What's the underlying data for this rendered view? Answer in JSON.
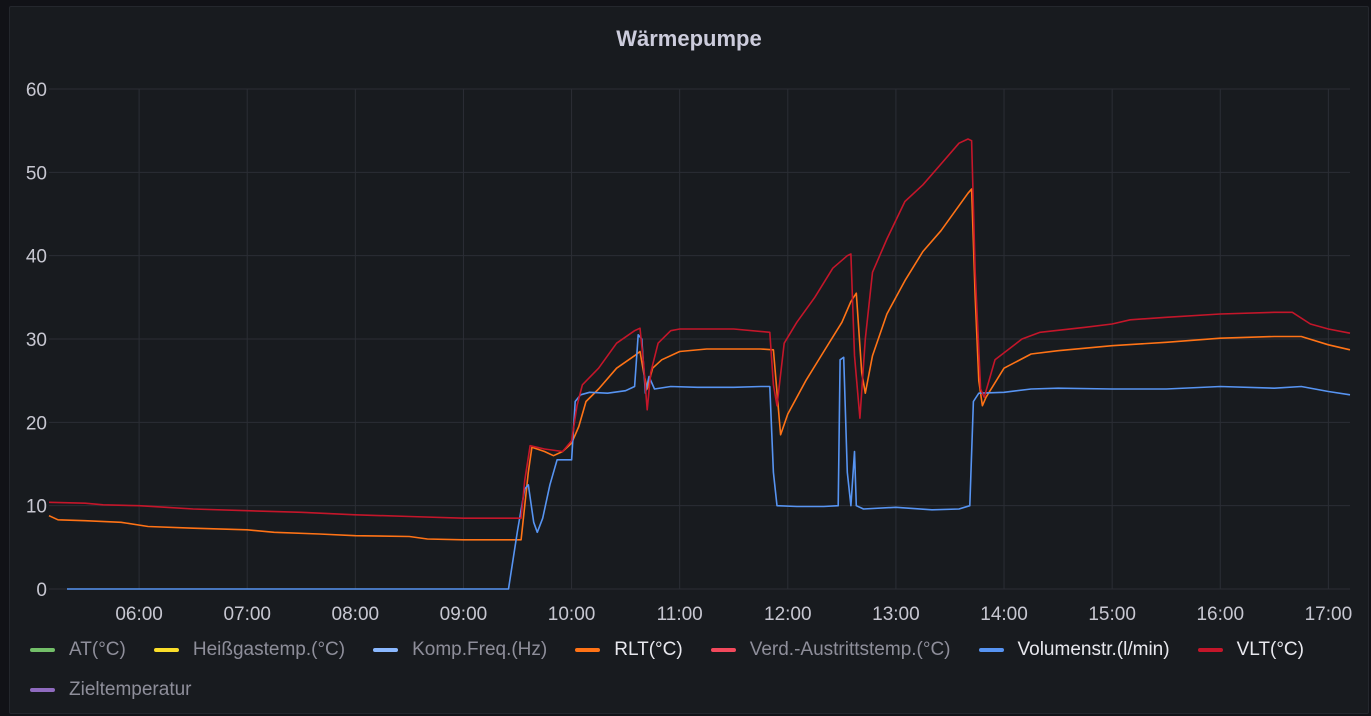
{
  "panel": {
    "title": "Wärmepumpe"
  },
  "legend": [
    {
      "label": "AT(°C)",
      "color": "#73bf69",
      "active": false
    },
    {
      "label": "Heißgastemp.(°C)",
      "color": "#fade2a",
      "active": false
    },
    {
      "label": "Komp.Freq.(Hz)",
      "color": "#8ab8ff",
      "active": false
    },
    {
      "label": "RLT(°C)",
      "color": "#ff7316",
      "active": true
    },
    {
      "label": "Verd.-Austrittstemp.(°C)",
      "color": "#f2495c",
      "active": false
    },
    {
      "label": "Volumenstr.(l/min)",
      "color": "#5794f2",
      "active": true
    },
    {
      "label": "VLT(°C)",
      "color": "#c4162a",
      "active": true
    },
    {
      "label": "Zieltemperatur",
      "color": "#8f6bbf",
      "active": false
    }
  ],
  "chart_data": {
    "type": "line",
    "title": "Wärmepumpe",
    "xlabel": "",
    "ylabel": "",
    "x_axis": {
      "type": "time",
      "range": [
        "05:10",
        "17:12"
      ],
      "ticks": [
        "06:00",
        "07:00",
        "08:00",
        "09:00",
        "10:00",
        "11:00",
        "12:00",
        "13:00",
        "14:00",
        "15:00",
        "16:00",
        "17:00"
      ]
    },
    "y_axis": {
      "range": [
        0,
        60
      ],
      "ticks": [
        0,
        10,
        20,
        30,
        40,
        50,
        60
      ]
    },
    "grid": true,
    "legend_position": "bottom",
    "series": [
      {
        "name": "RLT(°C)",
        "color": "#ff7316",
        "points": [
          [
            "05:10",
            8.8
          ],
          [
            "05:15",
            8.3
          ],
          [
            "05:30",
            8.2
          ],
          [
            "05:50",
            8.0
          ],
          [
            "06:05",
            7.5
          ],
          [
            "06:30",
            7.3
          ],
          [
            "07:00",
            7.1
          ],
          [
            "07:15",
            6.8
          ],
          [
            "07:40",
            6.6
          ],
          [
            "08:00",
            6.4
          ],
          [
            "08:30",
            6.3
          ],
          [
            "08:40",
            6.0
          ],
          [
            "09:00",
            5.9
          ],
          [
            "09:25",
            5.9
          ],
          [
            "09:32",
            5.9
          ],
          [
            "09:36",
            14.0
          ],
          [
            "09:38",
            17.0
          ],
          [
            "09:45",
            16.5
          ],
          [
            "09:50",
            16.0
          ],
          [
            "09:55",
            16.5
          ],
          [
            "10:00",
            17.5
          ],
          [
            "10:04",
            19.5
          ],
          [
            "10:08",
            22.5
          ],
          [
            "10:15",
            24.0
          ],
          [
            "10:25",
            26.5
          ],
          [
            "10:35",
            28.0
          ],
          [
            "10:38",
            28.5
          ],
          [
            "10:40",
            26.0
          ],
          [
            "10:42",
            24.0
          ],
          [
            "10:45",
            26.5
          ],
          [
            "10:50",
            27.5
          ],
          [
            "11:00",
            28.5
          ],
          [
            "11:15",
            28.8
          ],
          [
            "11:30",
            28.8
          ],
          [
            "11:45",
            28.8
          ],
          [
            "11:52",
            28.7
          ],
          [
            "11:56",
            18.5
          ],
          [
            "12:00",
            21.0
          ],
          [
            "12:10",
            25.0
          ],
          [
            "12:20",
            28.5
          ],
          [
            "12:30",
            32.0
          ],
          [
            "12:35",
            34.5
          ],
          [
            "12:38",
            35.5
          ],
          [
            "12:41",
            26.0
          ],
          [
            "12:43",
            23.5
          ],
          [
            "12:47",
            28.0
          ],
          [
            "12:55",
            33.0
          ],
          [
            "13:05",
            37.0
          ],
          [
            "13:15",
            40.5
          ],
          [
            "13:25",
            43.0
          ],
          [
            "13:35",
            46.0
          ],
          [
            "13:40",
            47.5
          ],
          [
            "13:42",
            48.0
          ],
          [
            "13:44",
            35.0
          ],
          [
            "13:46",
            25.0
          ],
          [
            "13:48",
            22.0
          ],
          [
            "13:50",
            23.0
          ],
          [
            "14:00",
            26.5
          ],
          [
            "14:15",
            28.2
          ],
          [
            "14:30",
            28.6
          ],
          [
            "15:00",
            29.2
          ],
          [
            "15:30",
            29.6
          ],
          [
            "16:00",
            30.1
          ],
          [
            "16:30",
            30.3
          ],
          [
            "16:45",
            30.3
          ],
          [
            "17:00",
            29.3
          ],
          [
            "17:12",
            28.7
          ]
        ]
      },
      {
        "name": "Volumenstr.(l/min)",
        "color": "#5794f2",
        "points": [
          [
            "05:20",
            0
          ],
          [
            "09:22",
            0
          ],
          [
            "09:25",
            0
          ],
          [
            "09:30",
            7.0
          ],
          [
            "09:34",
            12.0
          ],
          [
            "09:36",
            12.5
          ],
          [
            "09:39",
            8.0
          ],
          [
            "09:41",
            6.8
          ],
          [
            "09:44",
            8.5
          ],
          [
            "09:48",
            12.5
          ],
          [
            "09:52",
            15.5
          ],
          [
            "09:56",
            15.5
          ],
          [
            "10:00",
            15.5
          ],
          [
            "10:02",
            22.5
          ],
          [
            "10:05",
            23.3
          ],
          [
            "10:10",
            23.6
          ],
          [
            "10:20",
            23.5
          ],
          [
            "10:30",
            23.8
          ],
          [
            "10:35",
            24.3
          ],
          [
            "10:37",
            30.5
          ],
          [
            "10:39",
            30.0
          ],
          [
            "10:41",
            23.5
          ],
          [
            "10:43",
            25.5
          ],
          [
            "10:46",
            24.0
          ],
          [
            "10:55",
            24.3
          ],
          [
            "11:10",
            24.2
          ],
          [
            "11:30",
            24.2
          ],
          [
            "11:45",
            24.3
          ],
          [
            "11:50",
            24.3
          ],
          [
            "11:52",
            14.0
          ],
          [
            "11:54",
            10.0
          ],
          [
            "12:05",
            9.9
          ],
          [
            "12:20",
            9.9
          ],
          [
            "12:28",
            10.0
          ],
          [
            "12:29",
            27.5
          ],
          [
            "12:31",
            27.8
          ],
          [
            "12:33",
            14.0
          ],
          [
            "12:35",
            10.0
          ],
          [
            "12:37",
            16.5
          ],
          [
            "12:38",
            10.0
          ],
          [
            "12:42",
            9.6
          ],
          [
            "13:00",
            9.8
          ],
          [
            "13:20",
            9.5
          ],
          [
            "13:35",
            9.6
          ],
          [
            "13:41",
            10.0
          ],
          [
            "13:43",
            22.5
          ],
          [
            "13:46",
            23.5
          ],
          [
            "14:00",
            23.6
          ],
          [
            "14:15",
            24.0
          ],
          [
            "14:30",
            24.1
          ],
          [
            "15:00",
            24.0
          ],
          [
            "15:30",
            24.0
          ],
          [
            "16:00",
            24.3
          ],
          [
            "16:30",
            24.1
          ],
          [
            "16:45",
            24.3
          ],
          [
            "17:00",
            23.7
          ],
          [
            "17:12",
            23.3
          ]
        ]
      },
      {
        "name": "VLT(°C)",
        "color": "#c4162a",
        "points": [
          [
            "05:10",
            10.4
          ],
          [
            "05:30",
            10.3
          ],
          [
            "05:40",
            10.1
          ],
          [
            "06:00",
            10.0
          ],
          [
            "06:15",
            9.8
          ],
          [
            "06:30",
            9.6
          ],
          [
            "07:00",
            9.4
          ],
          [
            "07:30",
            9.2
          ],
          [
            "08:00",
            8.9
          ],
          [
            "08:30",
            8.7
          ],
          [
            "09:00",
            8.5
          ],
          [
            "09:25",
            8.5
          ],
          [
            "09:32",
            8.5
          ],
          [
            "09:34",
            13.0
          ],
          [
            "09:37",
            17.2
          ],
          [
            "09:45",
            16.8
          ],
          [
            "09:55",
            16.5
          ],
          [
            "10:00",
            17.8
          ],
          [
            "10:03",
            22.0
          ],
          [
            "10:06",
            24.5
          ],
          [
            "10:15",
            26.5
          ],
          [
            "10:25",
            29.5
          ],
          [
            "10:35",
            31.0
          ],
          [
            "10:38",
            31.3
          ],
          [
            "10:40",
            27.0
          ],
          [
            "10:42",
            21.5
          ],
          [
            "10:44",
            26.0
          ],
          [
            "10:48",
            29.5
          ],
          [
            "10:55",
            31.0
          ],
          [
            "11:00",
            31.2
          ],
          [
            "11:30",
            31.2
          ],
          [
            "11:50",
            30.8
          ],
          [
            "11:52",
            24.5
          ],
          [
            "11:54",
            22.0
          ],
          [
            "11:58",
            29.5
          ],
          [
            "12:05",
            32.0
          ],
          [
            "12:15",
            35.0
          ],
          [
            "12:25",
            38.5
          ],
          [
            "12:33",
            40.0
          ],
          [
            "12:35",
            40.2
          ],
          [
            "12:37",
            28.0
          ],
          [
            "12:40",
            20.5
          ],
          [
            "12:43",
            30.0
          ],
          [
            "12:47",
            38.0
          ],
          [
            "12:55",
            42.0
          ],
          [
            "13:05",
            46.5
          ],
          [
            "13:15",
            48.5
          ],
          [
            "13:25",
            51.0
          ],
          [
            "13:35",
            53.5
          ],
          [
            "13:40",
            54.0
          ],
          [
            "13:42",
            53.8
          ],
          [
            "13:44",
            38.0
          ],
          [
            "13:47",
            24.0
          ],
          [
            "13:49",
            23.0
          ],
          [
            "13:55",
            27.5
          ],
          [
            "14:10",
            30.0
          ],
          [
            "14:20",
            30.8
          ],
          [
            "14:45",
            31.4
          ],
          [
            "15:00",
            31.8
          ],
          [
            "15:10",
            32.3
          ],
          [
            "15:30",
            32.6
          ],
          [
            "16:00",
            33.0
          ],
          [
            "16:30",
            33.2
          ],
          [
            "16:40",
            33.2
          ],
          [
            "16:50",
            31.8
          ],
          [
            "17:00",
            31.2
          ],
          [
            "17:12",
            30.7
          ]
        ]
      }
    ]
  }
}
